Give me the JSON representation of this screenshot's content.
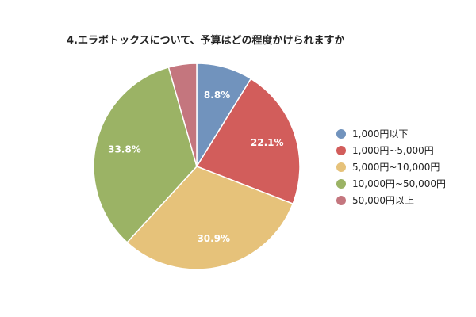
{
  "chart_data": {
    "type": "pie",
    "title": "4.エラボトックスについて、予算はどの程度かけられますか",
    "slices": [
      {
        "label": "1,000円以下",
        "value": 8.8,
        "value_label": "8.8%",
        "color": "#7193bd"
      },
      {
        "label": "1,000円~5,000円",
        "value": 22.1,
        "value_label": "22.1%",
        "color": "#d25d5b"
      },
      {
        "label": "5,000円~10,000円",
        "value": 30.9,
        "value_label": "30.9%",
        "color": "#e6c27a"
      },
      {
        "label": "10,000円~50,000円",
        "value": 33.8,
        "value_label": "33.8%",
        "color": "#9bb365"
      },
      {
        "label": "50,000円以上",
        "value": 4.4,
        "value_label": "",
        "color": "#c4767e"
      }
    ],
    "legend_position": "right"
  }
}
